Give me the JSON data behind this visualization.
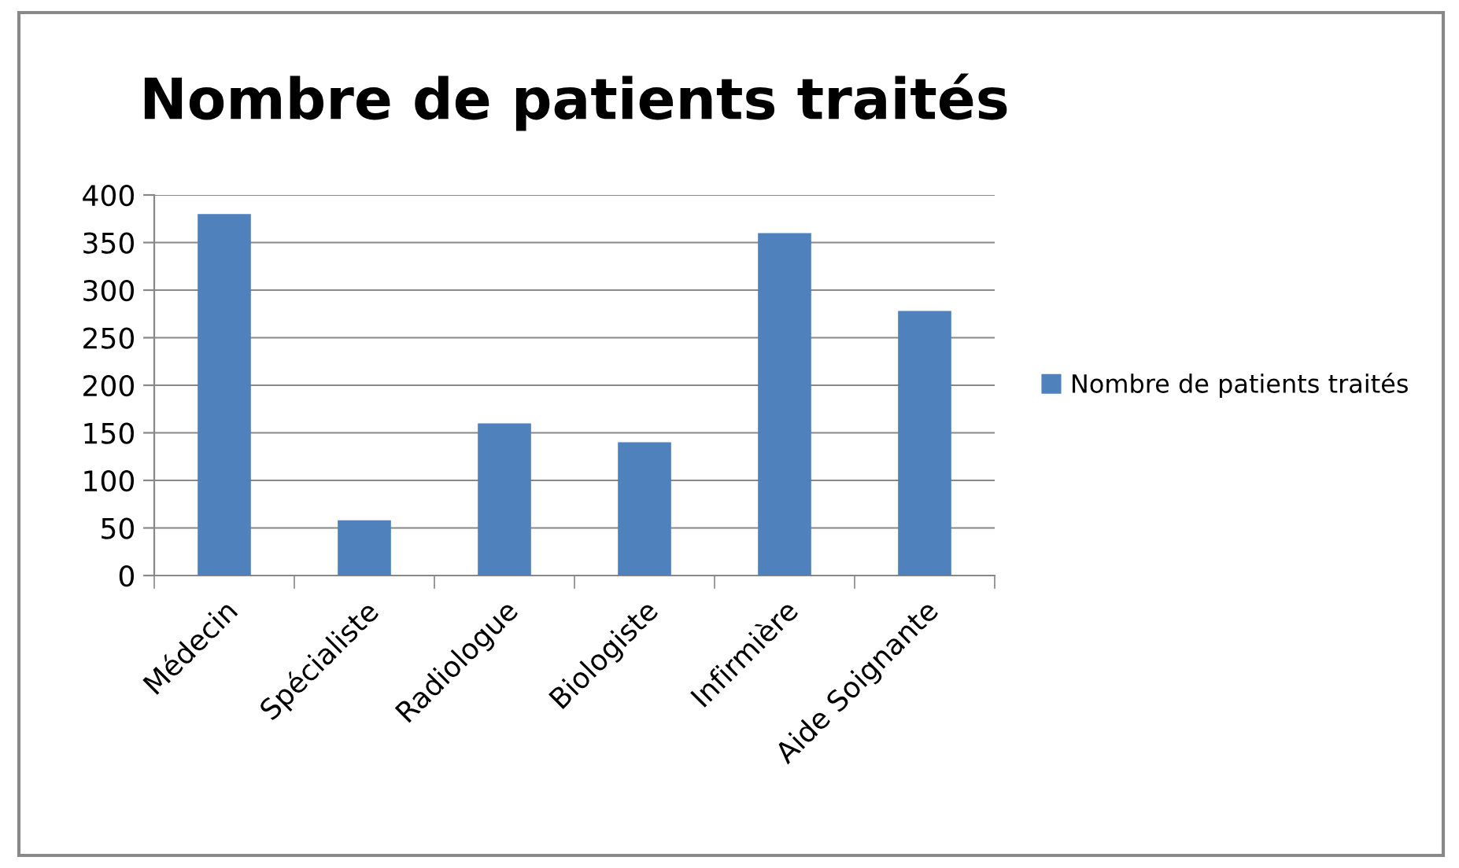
{
  "chart_data": {
    "type": "bar",
    "title": "Nombre de patients traités",
    "categories": [
      "Médecin",
      "Spécialiste",
      "Radiologue",
      "Biologiste",
      "Infirmière",
      "Aide Soignante"
    ],
    "series": [
      {
        "name": "Nombre de patients traités",
        "color": "#4f81bd",
        "values": [
          380,
          58,
          160,
          140,
          360,
          278
        ]
      }
    ],
    "ylim": [
      0,
      400
    ],
    "yticks": [
      0,
      50,
      100,
      150,
      200,
      250,
      300,
      350,
      400
    ],
    "grid": "y",
    "legend": "right"
  }
}
